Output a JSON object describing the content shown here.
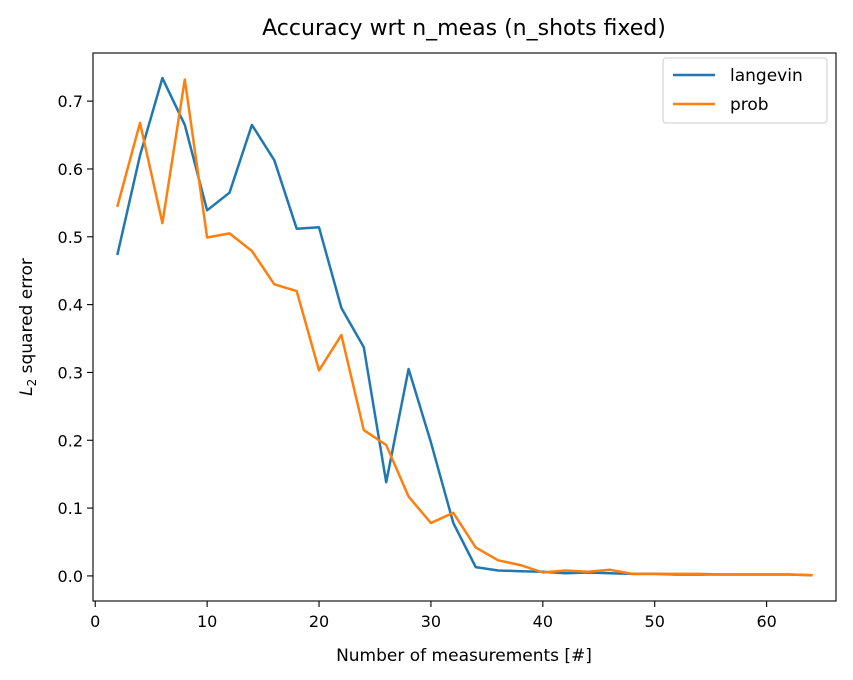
{
  "chart_data": {
    "type": "line",
    "title": "Accuracy wrt n_meas (n_shots fixed)",
    "xlabel": "Number of measurements [#]",
    "ylabel_main": "L",
    "ylabel_sub": "2",
    "ylabel_rest": " squared error",
    "xlim": [
      -0.2,
      66.2
    ],
    "ylim": [
      -0.037,
      0.771
    ],
    "xticks": [
      0,
      10,
      20,
      30,
      40,
      50,
      60
    ],
    "yticks": [
      0.0,
      0.1,
      0.2,
      0.3,
      0.4,
      0.5,
      0.6,
      0.7
    ],
    "ytick_labels": [
      "0.0",
      "0.1",
      "0.2",
      "0.3",
      "0.4",
      "0.5",
      "0.6",
      "0.7"
    ],
    "grid": false,
    "legend_position": "top-right",
    "x": [
      2,
      4,
      6,
      8,
      10,
      12,
      14,
      16,
      18,
      20,
      22,
      24,
      26,
      28,
      30,
      32,
      34,
      36,
      38,
      40,
      42,
      44,
      46,
      48,
      50,
      52,
      54,
      56,
      58,
      60,
      62,
      64
    ],
    "series": [
      {
        "name": "langevin",
        "color": "#1f77b4",
        "values": [
          0.475,
          0.62,
          0.734,
          0.665,
          0.539,
          0.565,
          0.665,
          0.613,
          0.512,
          0.514,
          0.395,
          0.337,
          0.138,
          0.305,
          0.197,
          0.078,
          0.013,
          0.008,
          0.007,
          0.006,
          0.004,
          0.005,
          0.004,
          0.003,
          0.003,
          0.002,
          0.002,
          0.002,
          0.002,
          0.002,
          0.002,
          0.001
        ]
      },
      {
        "name": "prob",
        "color": "#ff7f0e",
        "values": [
          0.546,
          0.668,
          0.52,
          0.732,
          0.499,
          0.505,
          0.479,
          0.43,
          0.42,
          0.303,
          0.355,
          0.215,
          0.193,
          0.117,
          0.078,
          0.093,
          0.042,
          0.023,
          0.016,
          0.005,
          0.008,
          0.006,
          0.009,
          0.003,
          0.003,
          0.003,
          0.003,
          0.002,
          0.002,
          0.002,
          0.002,
          0.001
        ]
      }
    ]
  }
}
